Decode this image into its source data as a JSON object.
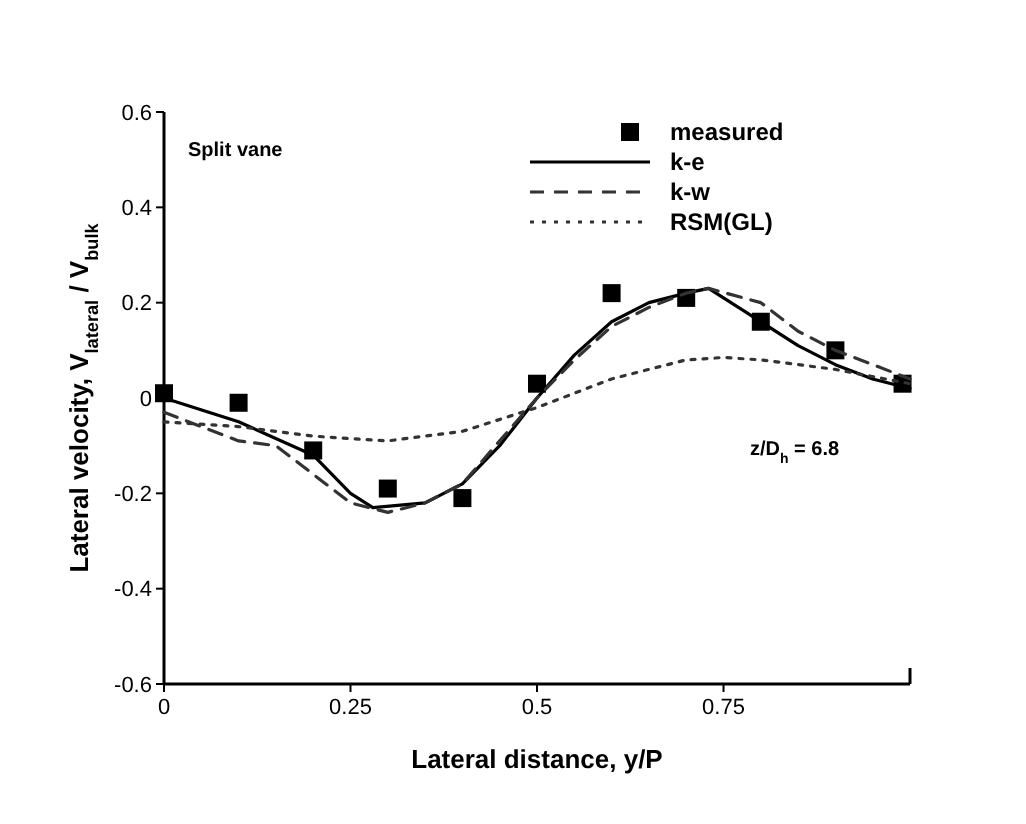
{
  "chart_data": {
    "type": "line",
    "xlabel": "Lateral distance, y/P",
    "ylabel": "Lateral velocity, V$_{lateral}$ / V$_{bulk}$",
    "annotations": [
      "Split vane",
      "z/D$_{h}$ = 6.8"
    ],
    "xlim": [
      0,
      1
    ],
    "xticks": [
      0,
      0.25,
      0.5,
      0.75
    ],
    "ylim": [
      -0.6,
      0.6
    ],
    "yticks": [
      {
        "value": 0.6,
        "label": "0.6"
      },
      {
        "value": 0.4,
        "label": "0.4"
      },
      {
        "value": 0.2,
        "label": "0.2"
      },
      0,
      {
        "value": -0.2,
        "label": "-0.2"
      },
      {
        "value": -0.4,
        "label": "-0.4"
      },
      {
        "value": -0.6,
        "label": "-0.6"
      }
    ],
    "grid": false,
    "legend": "top right",
    "series": [
      {
        "name": "measured",
        "type": "scatter",
        "marker": "square",
        "color": "#000000",
        "x": [
          0,
          0.1,
          0.2,
          0.3,
          0.4,
          0.5,
          0.6,
          0.7,
          0.8,
          0.9,
          0.99
        ],
        "values": [
          0.01,
          -0.01,
          -0.11,
          -0.19,
          -0.21,
          0.03,
          0.22,
          0.21,
          0.16,
          0.1,
          0.03
        ]
      },
      {
        "name": "k-e",
        "line_style": "solid",
        "color": "#000000",
        "x": [
          0,
          0.1,
          0.2,
          0.25,
          0.28,
          0.35,
          0.4,
          0.45,
          0.5,
          0.55,
          0.6,
          0.65,
          0.7,
          0.73,
          0.78,
          0.85,
          0.9,
          0.95,
          1.0
        ],
        "values": [
          0,
          -0.05,
          -0.12,
          -0.2,
          -0.23,
          -0.22,
          -0.18,
          -0.1,
          0,
          0.09,
          0.16,
          0.2,
          0.22,
          0.23,
          0.18,
          0.11,
          0.07,
          0.04,
          0.02
        ]
      },
      {
        "name": "k-w",
        "line_style": "dashed",
        "color": "#333333",
        "x": [
          0,
          0.1,
          0.15,
          0.2,
          0.25,
          0.3,
          0.35,
          0.4,
          0.45,
          0.5,
          0.55,
          0.6,
          0.65,
          0.7,
          0.73,
          0.8,
          0.85,
          0.9,
          0.95,
          1.0
        ],
        "values": [
          -0.03,
          -0.09,
          -0.1,
          -0.16,
          -0.22,
          -0.24,
          -0.22,
          -0.18,
          -0.09,
          0,
          0.08,
          0.15,
          0.19,
          0.22,
          0.23,
          0.2,
          0.14,
          0.1,
          0.07,
          0.04
        ]
      },
      {
        "name": "RSM(GL)",
        "line_style": "dotted",
        "color": "#333333",
        "x": [
          0,
          0.1,
          0.2,
          0.3,
          0.4,
          0.5,
          0.6,
          0.7,
          0.75,
          0.8,
          0.9,
          1.0
        ],
        "values": [
          -0.05,
          -0.06,
          -0.08,
          -0.09,
          -0.07,
          -0.02,
          0.04,
          0.08,
          0.085,
          0.08,
          0.06,
          0.03
        ]
      }
    ]
  }
}
